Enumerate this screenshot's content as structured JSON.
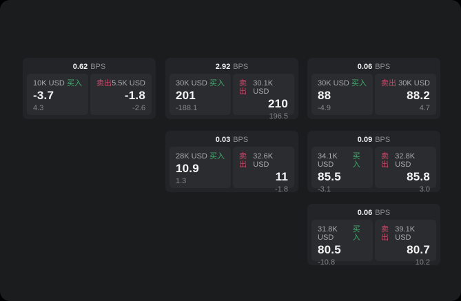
{
  "app": {
    "name": "quote-board"
  },
  "colors": {
    "page_bg": "#1b1c1e",
    "card_bg": "#232427",
    "panel_bg": "#2b2c2f",
    "buy": "#3fae6e",
    "sell": "#c7496a",
    "price_text": "#f5f5f6",
    "label_text": "#ababaf",
    "muted_text": "#86868a"
  },
  "labels": {
    "bps": "BPS",
    "buy": "买入",
    "sell": "卖出"
  },
  "grid": {
    "columns": 3,
    "rows": 3
  },
  "cards": [
    {
      "col": 1,
      "row": 1,
      "bps": "0.62",
      "buy": {
        "amount": "10K USD",
        "price": "-3.7",
        "delta": "4.3"
      },
      "sell": {
        "amount": "5.5K USD",
        "price": "-1.8",
        "delta": "-2.6"
      }
    },
    {
      "col": 2,
      "row": 1,
      "bps": "2.92",
      "buy": {
        "amount": "30K USD",
        "price": "201",
        "delta": "-188.1"
      },
      "sell": {
        "amount": "30.1K USD",
        "price": "210",
        "delta": "196.5"
      }
    },
    {
      "col": 3,
      "row": 1,
      "bps": "0.06",
      "buy": {
        "amount": "30K USD",
        "price": "88",
        "delta": "-4.9"
      },
      "sell": {
        "amount": "30K USD",
        "price": "88.2",
        "delta": "4.7"
      }
    },
    {
      "col": 2,
      "row": 2,
      "bps": "0.03",
      "buy": {
        "amount": "28K USD",
        "price": "10.9",
        "delta": "1.3"
      },
      "sell": {
        "amount": "32.6K USD",
        "price": "11",
        "delta": "-1.8"
      }
    },
    {
      "col": 3,
      "row": 2,
      "bps": "0.09",
      "buy": {
        "amount": "34.1K USD",
        "price": "85.5",
        "delta": "-3.1"
      },
      "sell": {
        "amount": "32.8K USD",
        "price": "85.8",
        "delta": "3.0"
      }
    },
    {
      "col": 3,
      "row": 3,
      "bps": "0.06",
      "buy": {
        "amount": "31.8K USD",
        "price": "80.5",
        "delta": "-10.8"
      },
      "sell": {
        "amount": "39.1K USD",
        "price": "80.7",
        "delta": "10.2"
      }
    }
  ]
}
